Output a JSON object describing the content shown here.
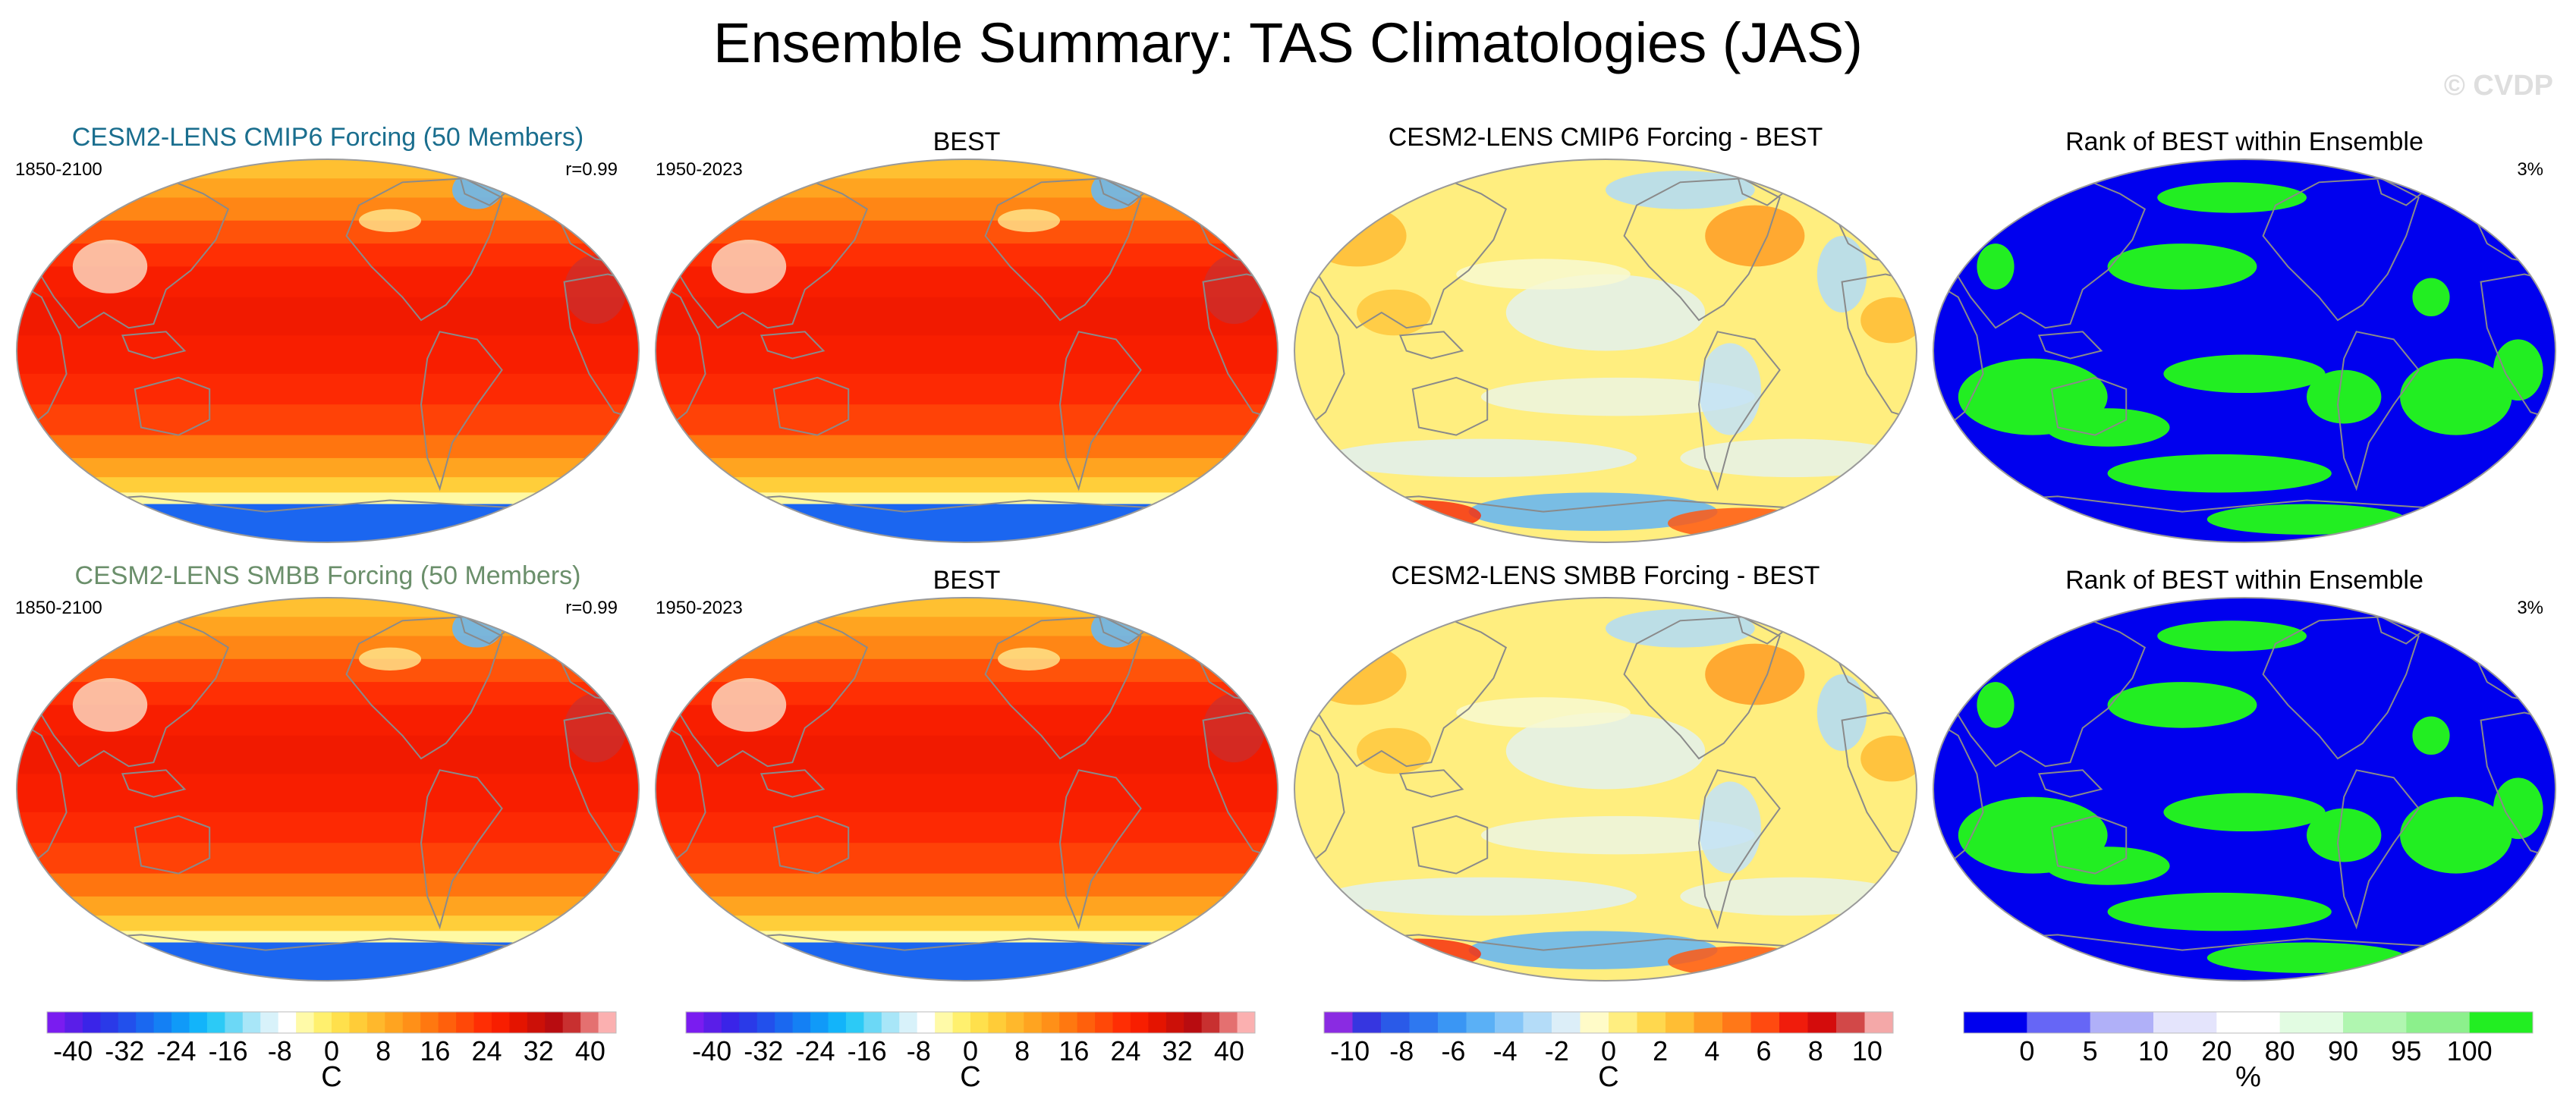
{
  "title": "Ensemble Summary: TAS Climatologies (JAS)",
  "watermark": "© CVDP",
  "colors": {
    "title_cmip6": "#1a6e8e",
    "title_smbb": "#6b8f6b",
    "rank_blue": "#0000ee",
    "rank_green": "#22ee22",
    "land": "#8a8a8a"
  },
  "chart_data": [
    {
      "type": "heatmap",
      "title": "CESM2-LENS CMIP6 Forcing (50 Members)",
      "left_label": "1850-2100",
      "right_label": "r=0.99",
      "field": "climatology",
      "colorbar_ref": 0
    },
    {
      "type": "heatmap",
      "title": "BEST",
      "left_label": "1950-2023",
      "right_label": "",
      "field": "climatology",
      "colorbar_ref": 1
    },
    {
      "type": "heatmap",
      "title": "CESM2-LENS CMIP6 Forcing - BEST",
      "left_label": "",
      "right_label": "",
      "field": "difference",
      "colorbar_ref": 2
    },
    {
      "type": "heatmap",
      "title": "Rank of BEST within Ensemble",
      "left_label": "",
      "right_label": "3%",
      "field": "rank",
      "colorbar_ref": 3
    },
    {
      "type": "heatmap",
      "title": "CESM2-LENS SMBB Forcing (50 Members)",
      "left_label": "1850-2100",
      "right_label": "r=0.99",
      "field": "climatology",
      "colorbar_ref": 0
    },
    {
      "type": "heatmap",
      "title": "BEST",
      "left_label": "1950-2023",
      "right_label": "",
      "field": "climatology",
      "colorbar_ref": 1
    },
    {
      "type": "heatmap",
      "title": "CESM2-LENS SMBB Forcing - BEST",
      "left_label": "",
      "right_label": "",
      "field": "difference",
      "colorbar_ref": 2
    },
    {
      "type": "heatmap",
      "title": "Rank of BEST within Ensemble",
      "left_label": "",
      "right_label": "3%",
      "field": "rank",
      "colorbar_ref": 3
    }
  ],
  "colorbars": [
    {
      "unit": "C",
      "range": [
        -44,
        44
      ],
      "tick_values": [
        -40,
        -32,
        -24,
        -16,
        -8,
        0,
        8,
        16,
        24,
        32,
        40
      ],
      "tick_labels": [
        "-40",
        "-32",
        "-24",
        "-16",
        "-8",
        "0",
        "8",
        "16",
        "24",
        "32",
        "40"
      ],
      "colors": [
        "#7a1cf0",
        "#5a1ee8",
        "#3a24e8",
        "#2a3ae8",
        "#2250ec",
        "#1a68f0",
        "#1480f4",
        "#109af8",
        "#12b4fa",
        "#2ccaf6",
        "#6cd8f6",
        "#a8e6f8",
        "#d8f2fa",
        "#ffffff",
        "#fffaa8",
        "#fff06e",
        "#ffe04c",
        "#ffcc38",
        "#ffb82c",
        "#ffa420",
        "#ff9018",
        "#ff7810",
        "#ff600c",
        "#ff4808",
        "#ff2e04",
        "#f81e00",
        "#e41400",
        "#cc1008",
        "#b80c10",
        "#c83030",
        "#e47070",
        "#fbb0b0"
      ]
    },
    {
      "unit": "C",
      "range": [
        -44,
        44
      ],
      "tick_values": [
        -40,
        -32,
        -24,
        -16,
        -8,
        0,
        8,
        16,
        24,
        32,
        40
      ],
      "tick_labels": [
        "-40",
        "-32",
        "-24",
        "-16",
        "-8",
        "0",
        "8",
        "16",
        "24",
        "32",
        "40"
      ],
      "colors": [
        "#7a1cf0",
        "#5a1ee8",
        "#3a24e8",
        "#2a3ae8",
        "#2250ec",
        "#1a68f0",
        "#1480f4",
        "#109af8",
        "#12b4fa",
        "#2ccaf6",
        "#6cd8f6",
        "#a8e6f8",
        "#d8f2fa",
        "#ffffff",
        "#fffaa8",
        "#fff06e",
        "#ffe04c",
        "#ffcc38",
        "#ffb82c",
        "#ffa420",
        "#ff9018",
        "#ff7810",
        "#ff600c",
        "#ff4808",
        "#ff2e04",
        "#f81e00",
        "#e41400",
        "#cc1008",
        "#b80c10",
        "#c83030",
        "#e47070",
        "#fbb0b0"
      ]
    },
    {
      "unit": "C",
      "range": [
        -11,
        11
      ],
      "tick_values": [
        -10,
        -8,
        -6,
        -4,
        -2,
        0,
        2,
        4,
        6,
        8,
        10
      ],
      "tick_labels": [
        "-10",
        "-8",
        "-6",
        "-4",
        "-2",
        "0",
        "2",
        "4",
        "6",
        "8",
        "10"
      ],
      "colors": [
        "#8a2be2",
        "#3636e0",
        "#2a5ae8",
        "#2e78f0",
        "#3a96f4",
        "#5ab0f6",
        "#86c6f8",
        "#b4dcf8",
        "#dceef8",
        "#fffbc8",
        "#ffee80",
        "#ffd84e",
        "#ffbe34",
        "#ff9a22",
        "#ff7818",
        "#ff4a10",
        "#f01c0c",
        "#d40c0c",
        "#d24848",
        "#f4a8a8"
      ]
    },
    {
      "unit": "%",
      "scale": "categorical",
      "bins": [
        "0-5",
        "5-10",
        "10-20",
        "20-80",
        "80-90",
        "90-95",
        "95-100"
      ],
      "tick_labels": [
        "0",
        "5",
        "10",
        "20",
        "80",
        "90",
        "95",
        "100"
      ],
      "colors": [
        "#0000ee",
        "#6666f6",
        "#b0b0f8",
        "#e4e4fc",
        "#ffffff",
        "#e2fce2",
        "#b0f6b0",
        "#8cf08c",
        "#22ee22"
      ]
    }
  ]
}
